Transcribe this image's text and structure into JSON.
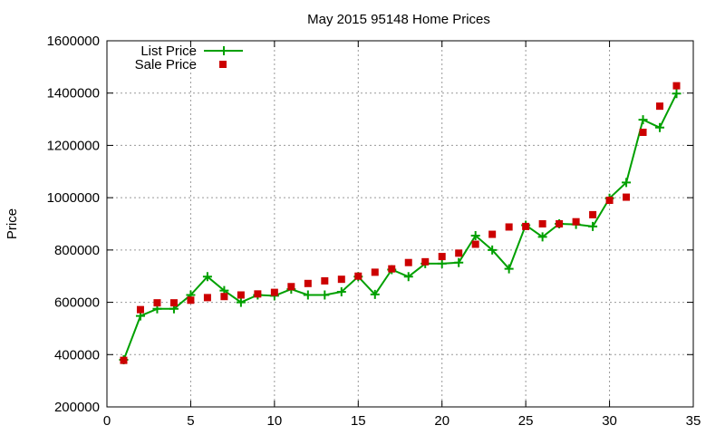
{
  "chart_data": {
    "type": "line",
    "title": "May 2015 95148 Home Prices",
    "xlabel": "",
    "ylabel": "Price",
    "xlim": [
      0,
      35
    ],
    "ylim": [
      200000,
      1600000
    ],
    "xticks": [
      0,
      5,
      10,
      15,
      20,
      25,
      30,
      35
    ],
    "yticks": [
      200000,
      400000,
      600000,
      800000,
      1000000,
      1200000,
      1400000,
      1600000
    ],
    "grid": true,
    "legend_position": "top-left",
    "series": [
      {
        "name": "List Price",
        "style": "line-with-plus-markers",
        "color": "#00a000",
        "x": [
          1,
          2,
          3,
          4,
          5,
          6,
          7,
          8,
          9,
          10,
          11,
          12,
          13,
          14,
          15,
          16,
          17,
          18,
          19,
          20,
          21,
          22,
          23,
          24,
          25,
          26,
          27,
          28,
          29,
          30,
          31,
          32,
          33,
          34
        ],
        "values": [
          380000,
          548000,
          575000,
          575000,
          628000,
          698000,
          645000,
          600000,
          628000,
          625000,
          650000,
          628000,
          628000,
          640000,
          698000,
          630000,
          725000,
          698000,
          748000,
          748000,
          752000,
          855000,
          800000,
          728000,
          895000,
          850000,
          900000,
          898000,
          890000,
          998000,
          1058000,
          1298000,
          1268000,
          1398000
        ]
      },
      {
        "name": "Sale Price",
        "style": "square-markers",
        "color": "#cc0000",
        "x": [
          1,
          2,
          3,
          4,
          5,
          6,
          7,
          8,
          9,
          10,
          11,
          12,
          13,
          14,
          15,
          16,
          17,
          18,
          19,
          20,
          21,
          22,
          23,
          24,
          25,
          26,
          27,
          28,
          29,
          30,
          31,
          32,
          33,
          34
        ],
        "values": [
          378000,
          572000,
          598000,
          598000,
          608000,
          618000,
          622000,
          628000,
          632000,
          638000,
          660000,
          672000,
          682000,
          688000,
          700000,
          715000,
          728000,
          752000,
          755000,
          775000,
          788000,
          822000,
          860000,
          888000,
          890000,
          900000,
          900000,
          908000,
          935000,
          990000,
          1002000,
          1250000,
          1350000,
          1428000
        ]
      }
    ]
  }
}
